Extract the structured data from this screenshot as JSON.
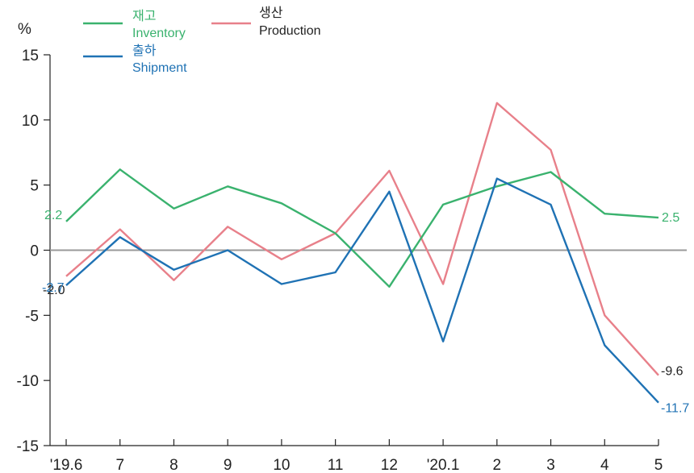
{
  "chart_data": {
    "type": "line",
    "ylabel": "%",
    "ylim": [
      -15,
      15
    ],
    "yticks": [
      "15",
      "10",
      "5",
      "0",
      "-5",
      "-10",
      "-15"
    ],
    "categories": [
      "'19.6",
      "7",
      "8",
      "9",
      "10",
      "11",
      "12",
      "'20.1",
      "2",
      "3",
      "4",
      "5"
    ],
    "series": [
      {
        "key": "inventory",
        "name_ko": "재고",
        "name_en": "Inventory",
        "color": "#3ab26e",
        "values": [
          2.2,
          6.2,
          3.2,
          4.9,
          3.6,
          1.3,
          -2.8,
          3.5,
          4.9,
          6.0,
          2.8,
          2.5
        ],
        "start_label": "2.2",
        "end_label": "2.5"
      },
      {
        "key": "production",
        "name_ko": "생산",
        "name_en": "Production",
        "color": "#e8808a",
        "values": [
          -2.0,
          1.6,
          -2.3,
          1.8,
          -0.7,
          1.3,
          6.1,
          -2.6,
          11.3,
          7.7,
          -5.0,
          -9.6
        ],
        "start_label": "-2.0",
        "end_label": "-9.6"
      },
      {
        "key": "shipment",
        "name_ko": "출하",
        "name_en": "Shipment",
        "color": "#1f72b4",
        "values": [
          -2.7,
          1.0,
          -1.5,
          0.0,
          -2.6,
          -1.7,
          4.5,
          -7.0,
          5.5,
          3.5,
          -7.3,
          -11.7
        ],
        "start_label": "-2.7",
        "end_label": "-11.7"
      }
    ],
    "axis_color": "#222222",
    "zero_line_color": "#9a9a9a"
  }
}
